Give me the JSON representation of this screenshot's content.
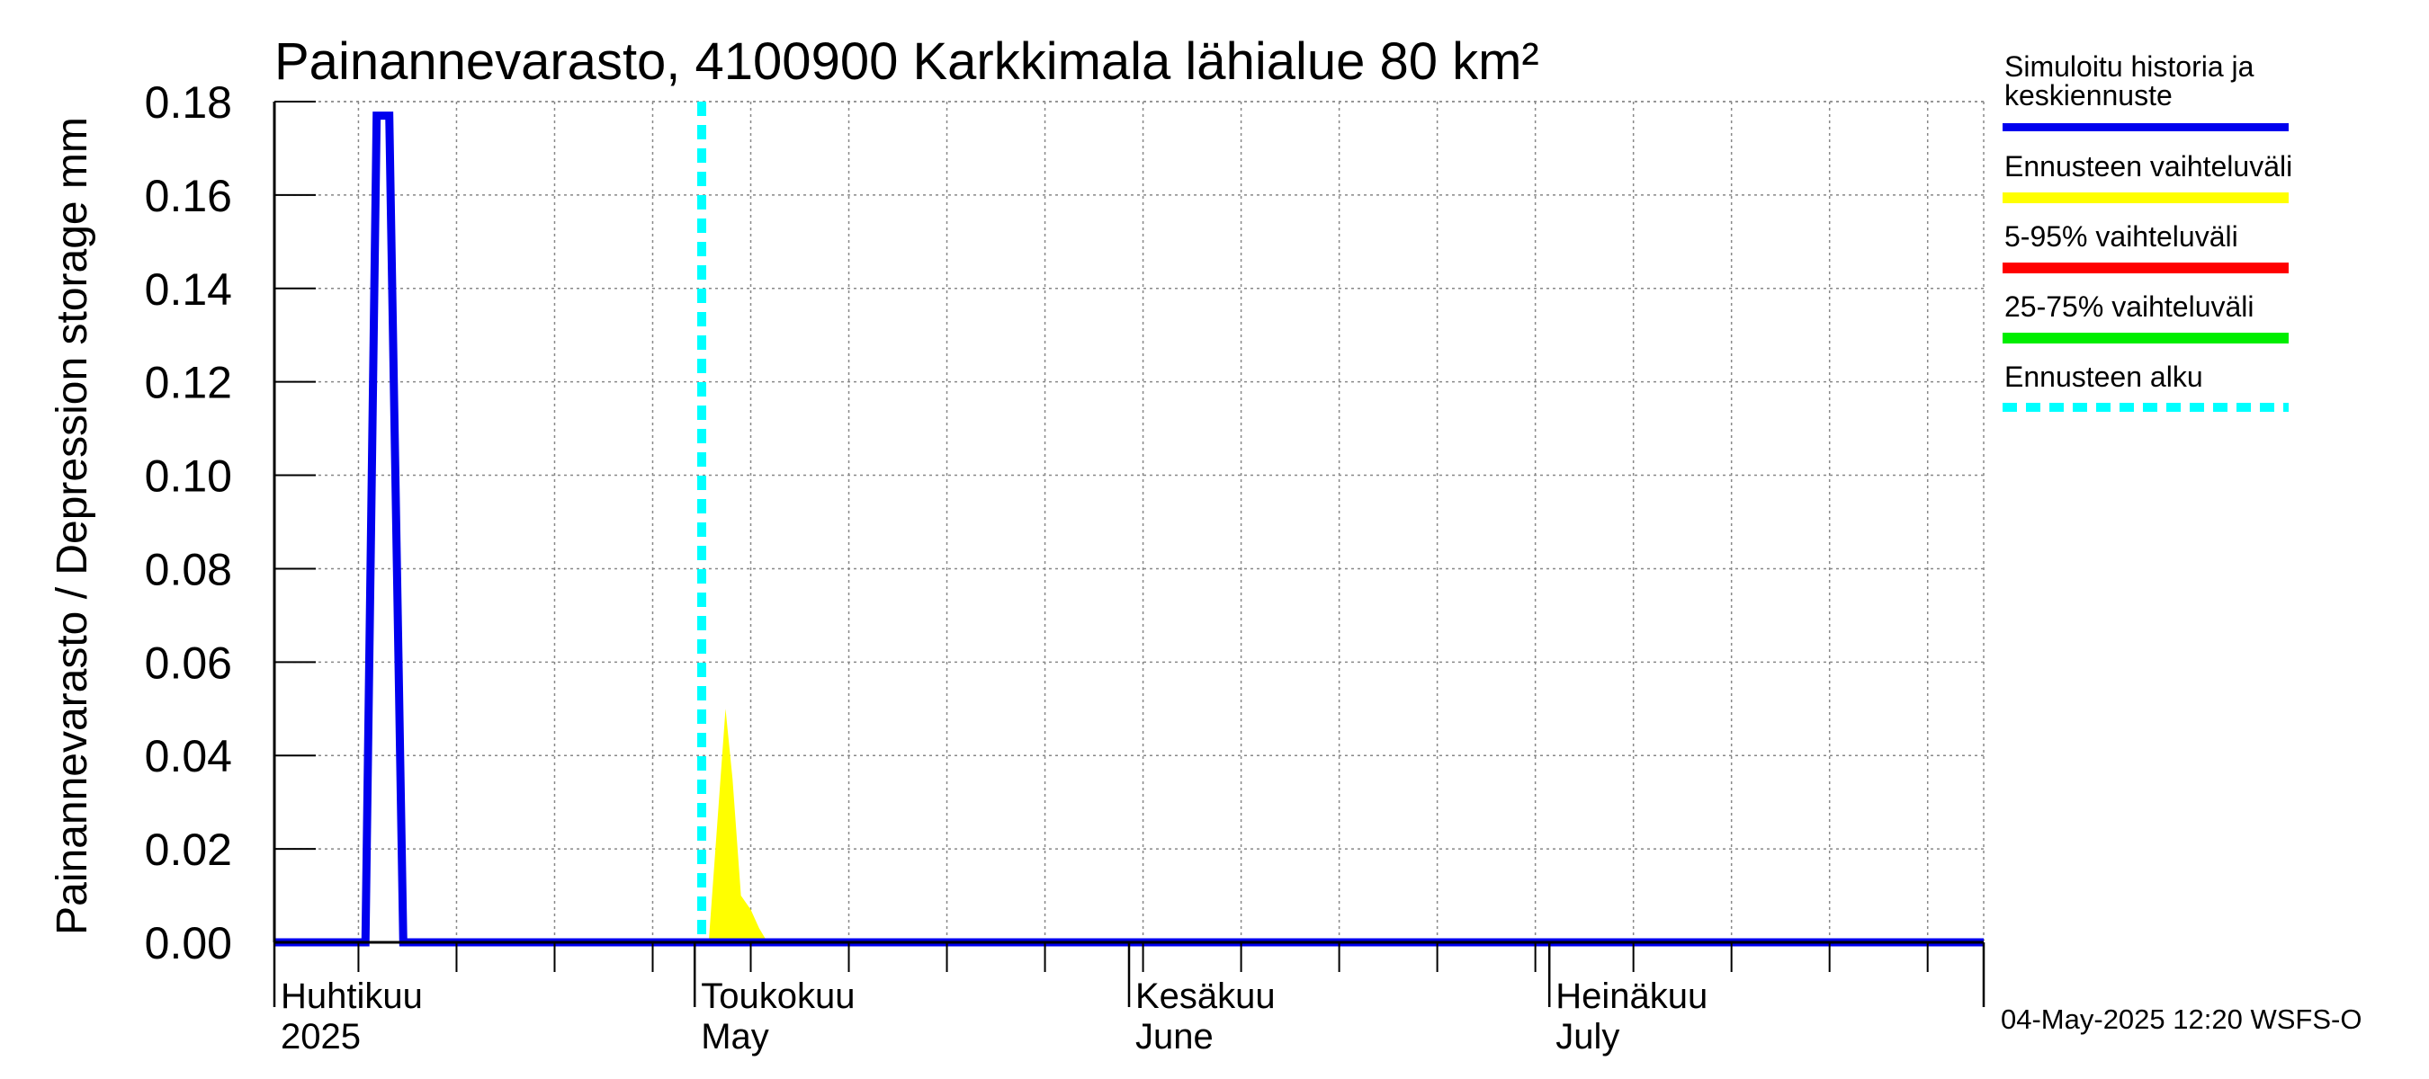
{
  "chart_data": {
    "type": "area",
    "title": "Painannevarasto, 4100900 Karkkimala lähialue 80 km²",
    "ylabel": "Painannevarasto / Depression storage    mm",
    "xlabel": "",
    "ylim": [
      0,
      0.18
    ],
    "yticks": [
      "0.00",
      "0.02",
      "0.04",
      "0.06",
      "0.08",
      "0.10",
      "0.12",
      "0.14",
      "0.16",
      "0.18"
    ],
    "xlim_days": [
      0,
      122
    ],
    "x_start_date": "2025-04-01",
    "month_labels": [
      {
        "fi": "Huhtikuu",
        "en": "2025",
        "day": 0
      },
      {
        "fi": "Toukokuu",
        "en": "May",
        "day": 30
      },
      {
        "fi": "Kesäkuu",
        "en": "June",
        "day": 61
      },
      {
        "fi": "Heinäkuu",
        "en": "July",
        "day": 91
      }
    ],
    "forecast_start_day": 30.5,
    "series": [
      {
        "name": "Simuloitu historia ja keskiennuste",
        "color": "#0000ee",
        "x": [
          0,
          6.5,
          7.3,
          8.2,
          9.2,
          122
        ],
        "y": [
          0,
          0,
          0.177,
          0.177,
          0,
          0
        ]
      },
      {
        "name": "Ennusteen vaihteluväli",
        "color": "#ffff00",
        "x": [
          31.0,
          31.6,
          32.2,
          32.7,
          33.3,
          34.0,
          34.6,
          35.2
        ],
        "upper": [
          0,
          0.025,
          0.05,
          0.035,
          0.01,
          0.007,
          0.003,
          0
        ],
        "lower": [
          0,
          0,
          0,
          0,
          0,
          0,
          0,
          0
        ]
      }
    ],
    "legend": [
      {
        "label": "Simuloitu historia ja",
        "label2": "keskiennuste",
        "color": "#0000ee",
        "style": "solid"
      },
      {
        "label": "Ennusteen vaihteluväli",
        "color": "#ffff00",
        "style": "solid"
      },
      {
        "label": "5-95% vaihteluväli",
        "color": "#ff0000",
        "style": "solid"
      },
      {
        "label": "25-75% vaihteluväli",
        "color": "#00ee00",
        "style": "solid"
      },
      {
        "label": "Ennusteen alku",
        "color": "#00ffff",
        "style": "dashed"
      }
    ],
    "footer": "04-May-2025 12:20 WSFS-O"
  }
}
